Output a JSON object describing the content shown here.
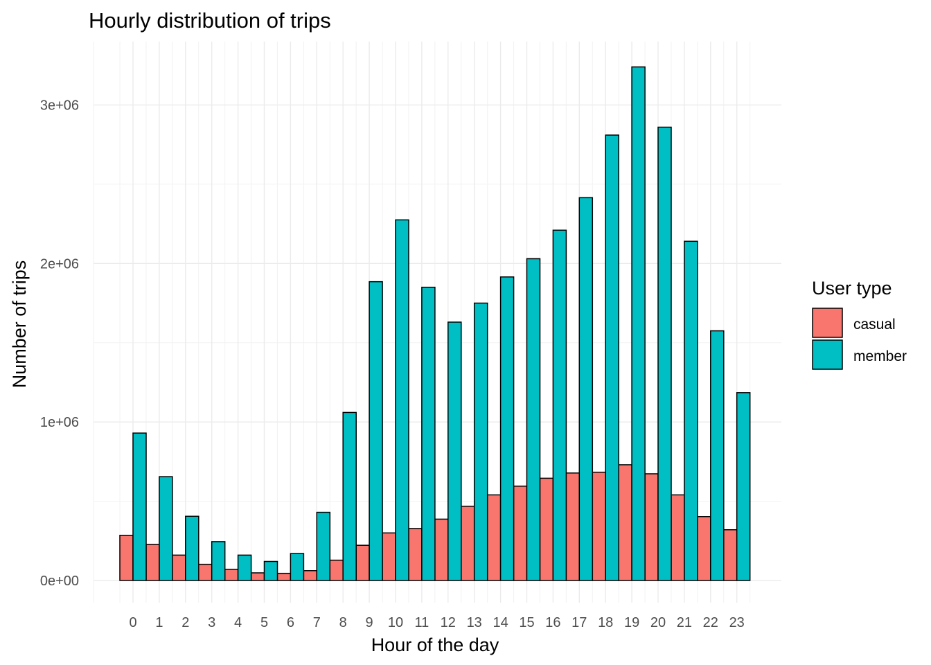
{
  "chart_data": {
    "type": "bar",
    "title": "Hourly distribution of trips",
    "xlabel": "Hour of the day",
    "ylabel": "Number of trips",
    "categories": [
      "0",
      "1",
      "2",
      "3",
      "4",
      "5",
      "6",
      "7",
      "8",
      "9",
      "10",
      "11",
      "12",
      "13",
      "14",
      "15",
      "16",
      "17",
      "18",
      "19",
      "20",
      "21",
      "22",
      "23"
    ],
    "series": [
      {
        "name": "casual",
        "color": "#F8766D",
        "values": [
          285000,
          228000,
          160000,
          102000,
          70000,
          48000,
          45000,
          62000,
          128000,
          222000,
          300000,
          328000,
          387000,
          468000,
          540000,
          595000,
          645000,
          678000,
          683000,
          730000,
          673000,
          540000,
          403000,
          320000
        ]
      },
      {
        "name": "member",
        "color": "#00BFC4",
        "values": [
          930000,
          655000,
          405000,
          245000,
          160000,
          120000,
          170000,
          430000,
          1060000,
          1885000,
          2275000,
          1850000,
          1630000,
          1750000,
          1915000,
          2030000,
          2210000,
          2415000,
          2810000,
          3240000,
          2860000,
          2140000,
          1575000,
          1185000
        ]
      }
    ],
    "y_ticks": [
      "0e+00",
      "1e+06",
      "2e+06",
      "3e+06"
    ],
    "y_tick_values": [
      0,
      1000000,
      2000000,
      3000000
    ],
    "ylim": [
      -140000,
      3400000
    ],
    "grid": true,
    "legend_title": "User type",
    "legend_position": "right"
  }
}
